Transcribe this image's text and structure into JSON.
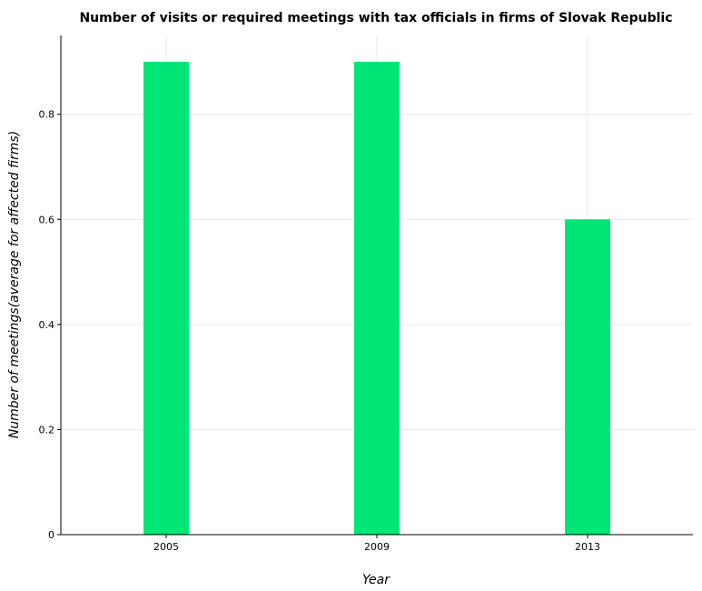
{
  "chart_data": {
    "type": "bar",
    "title": "Number of visits or required meetings with tax officials in firms of Slovak Republic",
    "xlabel": "Year",
    "ylabel": "Number of meetings(average for affected firms)",
    "categories": [
      "2005",
      "2009",
      "2013"
    ],
    "values": [
      0.9,
      0.9,
      0.6
    ],
    "ylim": [
      0,
      0.95
    ],
    "yticks": [
      0,
      0.2,
      0.4,
      0.6,
      0.8
    ],
    "ytick_labels": [
      "0",
      "0.2",
      "0.4",
      "0.6",
      "0.8"
    ],
    "grid": true,
    "bar_color": "#00e676"
  }
}
